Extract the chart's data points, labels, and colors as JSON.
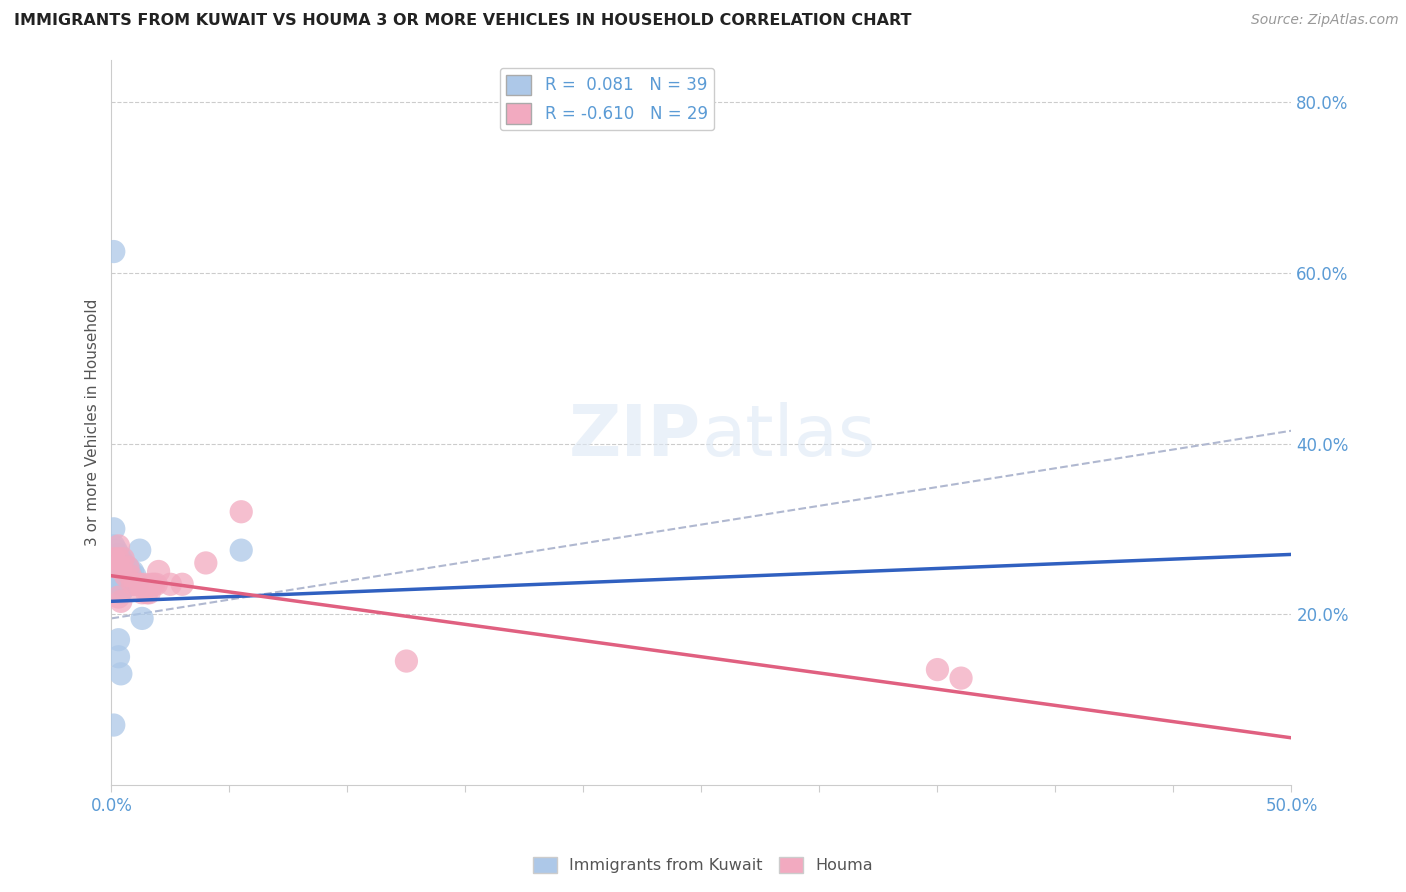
{
  "title": "IMMIGRANTS FROM KUWAIT VS HOUMA 3 OR MORE VEHICLES IN HOUSEHOLD CORRELATION CHART",
  "source": "Source: ZipAtlas.com",
  "ylabel": "3 or more Vehicles in Household",
  "xlim": [
    0.0,
    0.5
  ],
  "ylim": [
    0.0,
    0.85
  ],
  "blue_R": 0.081,
  "blue_N": 39,
  "pink_R": -0.61,
  "pink_N": 29,
  "blue_color": "#adc8e8",
  "pink_color": "#f2aac0",
  "blue_line_color": "#3060c0",
  "pink_line_color": "#e06080",
  "dash_line_color": "#b0b8d0",
  "tick_label_color": "#5b9bd5",
  "title_color": "#222222",
  "source_color": "#999999",
  "ylabel_color": "#555555",
  "watermark": "ZIPatlas",
  "legend_label_blue": "Immigrants from Kuwait",
  "legend_label_pink": "Houma",
  "y_tick_vals": [
    0.2,
    0.4,
    0.6,
    0.8
  ],
  "y_tick_labels": [
    "20.0%",
    "40.0%",
    "60.0%",
    "80.0%"
  ],
  "blue_line_x": [
    0.0,
    0.5
  ],
  "blue_line_y": [
    0.215,
    0.27
  ],
  "pink_line_x": [
    0.0,
    0.5
  ],
  "pink_line_y": [
    0.245,
    0.055
  ],
  "dash_line_x": [
    0.0,
    0.5
  ],
  "dash_line_y": [
    0.195,
    0.415
  ],
  "blue_scatter_x": [
    0.001,
    0.001,
    0.001,
    0.001,
    0.002,
    0.002,
    0.002,
    0.002,
    0.003,
    0.003,
    0.003,
    0.003,
    0.004,
    0.004,
    0.004,
    0.004,
    0.004,
    0.005,
    0.005,
    0.005,
    0.005,
    0.006,
    0.006,
    0.006,
    0.007,
    0.007,
    0.008,
    0.008,
    0.009,
    0.009,
    0.01,
    0.011,
    0.012,
    0.013,
    0.003,
    0.003,
    0.004,
    0.055,
    0.001
  ],
  "blue_scatter_y": [
    0.625,
    0.3,
    0.28,
    0.25,
    0.275,
    0.265,
    0.25,
    0.24,
    0.27,
    0.26,
    0.255,
    0.24,
    0.265,
    0.255,
    0.245,
    0.235,
    0.225,
    0.26,
    0.25,
    0.24,
    0.23,
    0.255,
    0.245,
    0.235,
    0.255,
    0.235,
    0.25,
    0.235,
    0.25,
    0.235,
    0.245,
    0.235,
    0.275,
    0.195,
    0.17,
    0.15,
    0.13,
    0.275,
    0.07
  ],
  "pink_scatter_x": [
    0.001,
    0.002,
    0.003,
    0.003,
    0.004,
    0.005,
    0.006,
    0.007,
    0.008,
    0.009,
    0.01,
    0.012,
    0.013,
    0.014,
    0.015,
    0.016,
    0.017,
    0.018,
    0.019,
    0.02,
    0.025,
    0.03,
    0.04,
    0.055,
    0.35,
    0.36,
    0.003,
    0.004,
    0.125
  ],
  "pink_scatter_y": [
    0.265,
    0.255,
    0.28,
    0.265,
    0.255,
    0.265,
    0.245,
    0.255,
    0.245,
    0.235,
    0.235,
    0.235,
    0.225,
    0.235,
    0.225,
    0.225,
    0.235,
    0.235,
    0.235,
    0.25,
    0.235,
    0.235,
    0.26,
    0.32,
    0.135,
    0.125,
    0.22,
    0.215,
    0.145
  ]
}
